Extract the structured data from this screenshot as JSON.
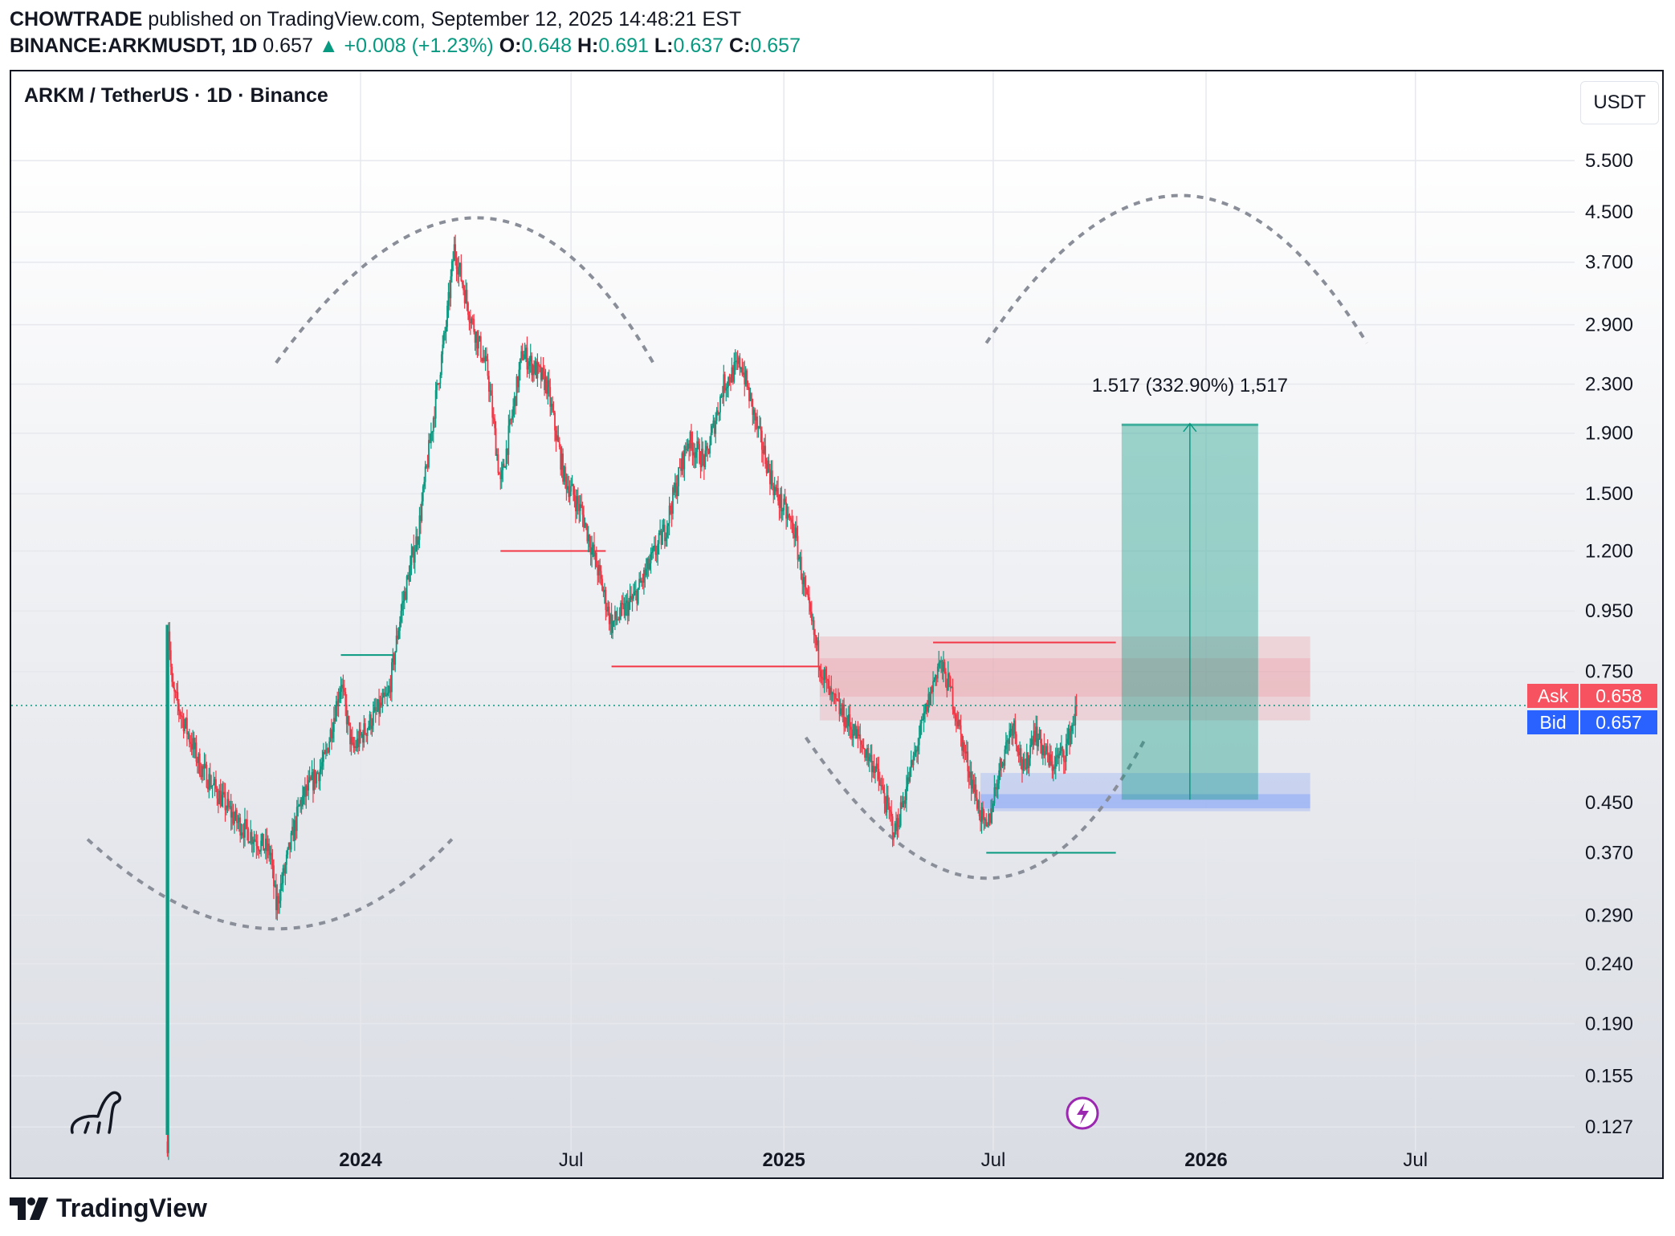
{
  "header": {
    "publisher": "CHOWTRADE",
    "published_text": "published on TradingView.com, September 12, 2025 14:48:21 EST",
    "symbol": "BINANCE:ARKMUSDT, 1D",
    "last": "0.657",
    "change": "▲ +0.008 (+1.23%)",
    "o_label": "O:",
    "o_value": "0.648",
    "h_label": "H:",
    "h_value": "0.691",
    "l_label": "L:",
    "l_value": "0.637",
    "c_label": "C:",
    "c_value": "0.657"
  },
  "chart_title": "ARKM / TetherUS · 1D · Binance",
  "currency_button": "USDT",
  "ask": {
    "label": "Ask",
    "value": "0.658"
  },
  "bid": {
    "label": "Bid",
    "value": "0.657"
  },
  "measure_label": "1.517 (332.90%) 1,517",
  "footer_brand": "TradingView",
  "colors": {
    "up": "#089981",
    "down": "#f23645",
    "ask": "#f7525f",
    "bid": "#2962ff",
    "target_box": "#089981",
    "resistance_zone": "#f23645",
    "support_zone": "#2962ff"
  },
  "chart_data": {
    "type": "candlestick",
    "title": "ARKM / TetherUS · 1D · Binance",
    "y_scale": "log",
    "ylim": [
      0.122,
      6.1
    ],
    "x_ticks": [
      "2024",
      "Jul",
      "2025",
      "Jul",
      "2026",
      "Jul"
    ],
    "y_ticks": [
      5.5,
      4.5,
      3.7,
      2.9,
      2.3,
      1.9,
      1.5,
      1.2,
      0.95,
      0.75,
      0.45,
      0.37,
      0.29,
      0.24,
      0.19,
      0.155,
      0.127
    ],
    "y_tick_labels": [
      "5.500",
      "4.500",
      "3.700",
      "2.900",
      "2.300",
      "1.900",
      "1.500",
      "1.200",
      "0.950",
      "0.750",
      "0.450",
      "0.370",
      "0.290",
      "0.240",
      "0.190",
      "0.155",
      "0.127"
    ],
    "last_price": 0.657,
    "price_path": [
      [
        "2023-07-18",
        0.12
      ],
      [
        "2023-07-19",
        0.9
      ],
      [
        "2023-07-22",
        0.7
      ],
      [
        "2023-08-15",
        0.52
      ],
      [
        "2023-09-15",
        0.42
      ],
      [
        "2023-10-15",
        0.37
      ],
      [
        "2023-10-20",
        0.3
      ],
      [
        "2023-11-10",
        0.45
      ],
      [
        "2023-12-01",
        0.53
      ],
      [
        "2023-12-15",
        0.72
      ],
      [
        "2023-12-25",
        0.55
      ],
      [
        "2024-01-10",
        0.62
      ],
      [
        "2024-01-25",
        0.68
      ],
      [
        "2024-02-05",
        0.95
      ],
      [
        "2024-02-20",
        1.3
      ],
      [
        "2024-03-05",
        2.1
      ],
      [
        "2024-03-15",
        2.9
      ],
      [
        "2024-03-22",
        3.9
      ],
      [
        "2024-04-05",
        3.0
      ],
      [
        "2024-04-20",
        2.4
      ],
      [
        "2024-05-01",
        1.55
      ],
      [
        "2024-05-20",
        2.6
      ],
      [
        "2024-06-10",
        2.3
      ],
      [
        "2024-06-25",
        1.6
      ],
      [
        "2024-07-10",
        1.4
      ],
      [
        "2024-07-25",
        1.1
      ],
      [
        "2024-08-05",
        0.9
      ],
      [
        "2024-08-25",
        1.0
      ],
      [
        "2024-09-20",
        1.3
      ],
      [
        "2024-10-10",
        1.85
      ],
      [
        "2024-10-25",
        1.7
      ],
      [
        "2024-11-10",
        2.3
      ],
      [
        "2024-11-25",
        2.5
      ],
      [
        "2024-12-10",
        1.9
      ],
      [
        "2024-12-25",
        1.5
      ],
      [
        "2025-01-10",
        1.3
      ],
      [
        "2025-01-20",
        1.0
      ],
      [
        "2025-02-01",
        0.78
      ],
      [
        "2025-02-10",
        0.68
      ],
      [
        "2025-03-01",
        0.6
      ],
      [
        "2025-03-20",
        0.52
      ],
      [
        "2025-04-07",
        0.4
      ],
      [
        "2025-04-25",
        0.55
      ],
      [
        "2025-05-15",
        0.78
      ],
      [
        "2025-05-25",
        0.7
      ],
      [
        "2025-06-05",
        0.56
      ],
      [
        "2025-06-20",
        0.43
      ],
      [
        "2025-06-25",
        0.4
      ],
      [
        "2025-07-05",
        0.5
      ],
      [
        "2025-07-18",
        0.62
      ],
      [
        "2025-07-28",
        0.5
      ],
      [
        "2025-08-05",
        0.6
      ],
      [
        "2025-08-20",
        0.52
      ],
      [
        "2025-09-01",
        0.55
      ],
      [
        "2025-09-12",
        0.657
      ]
    ],
    "annotations": {
      "resistance_zone": {
        "from": "2025-02-01",
        "to": "2026-04-01",
        "low": 0.62,
        "high": 0.86
      },
      "resistance_zone_inner": {
        "from": "2025-02-01",
        "to": "2026-04-01",
        "low": 0.68,
        "high": 0.79
      },
      "support_zone": {
        "from": "2025-06-20",
        "to": "2026-04-01",
        "low": 0.435,
        "high": 0.505
      },
      "support_zone_inner": {
        "from": "2025-06-20",
        "to": "2026-04-01",
        "low": 0.44,
        "high": 0.465
      },
      "target_box": {
        "from": "2025-10-20",
        "to": "2026-02-15",
        "low": 0.455,
        "high": 1.972
      },
      "level_lines": [
        {
          "from": "2023-12-15",
          "to": "2024-01-31",
          "price": 0.8,
          "color": "up"
        },
        {
          "from": "2024-05-01",
          "to": "2024-07-31",
          "price": 1.2,
          "color": "down"
        },
        {
          "from": "2024-08-05",
          "to": "2025-01-31",
          "price": 0.765,
          "color": "down"
        },
        {
          "from": "2025-05-10",
          "to": "2025-10-15",
          "price": 0.84,
          "color": "down"
        },
        {
          "from": "2025-06-25",
          "to": "2025-10-15",
          "price": 0.37,
          "color": "up"
        }
      ],
      "arcs": [
        {
          "kind": "trough",
          "from": "2023-05-10",
          "apex": "2023-10-20",
          "to": "2024-03-20",
          "edge": 0.39,
          "extreme": 0.275
        },
        {
          "kind": "peak",
          "from": "2023-10-20",
          "apex": "2024-04-10",
          "to": "2024-09-10",
          "edge": 2.5,
          "extreme": 4.4
        },
        {
          "kind": "trough",
          "from": "2025-01-20",
          "apex": "2025-06-25",
          "to": "2025-11-10",
          "edge": 0.58,
          "extreme": 0.335
        },
        {
          "kind": "peak",
          "from": "2025-06-25",
          "apex": "2025-12-10",
          "to": "2026-05-20",
          "edge": 2.7,
          "extreme": 4.8
        }
      ]
    }
  }
}
